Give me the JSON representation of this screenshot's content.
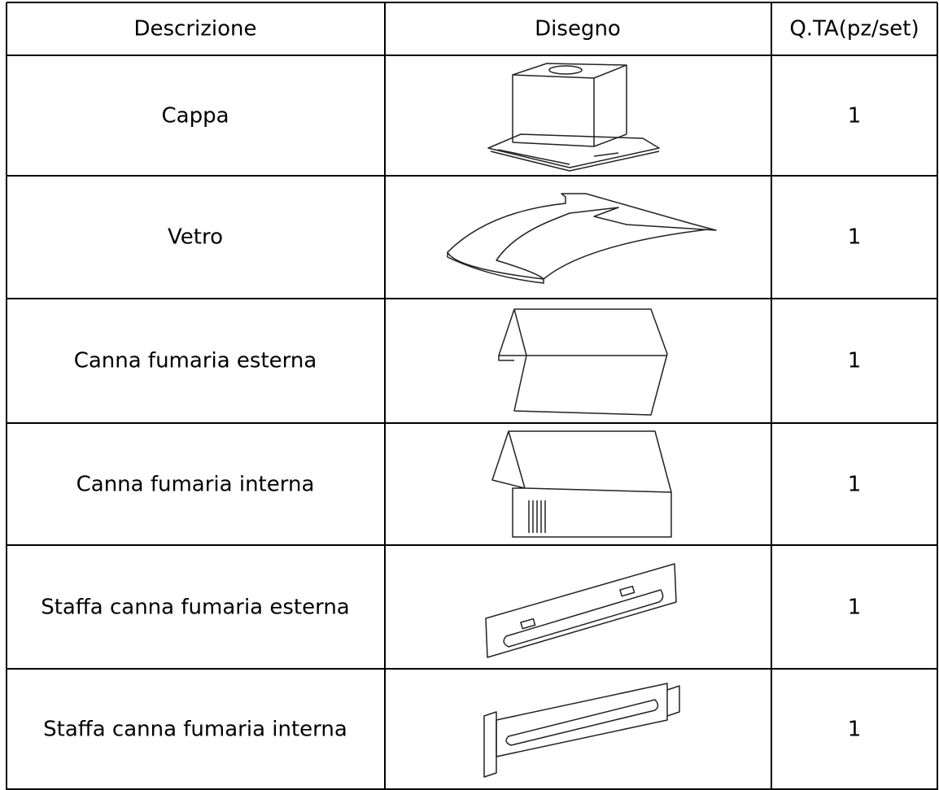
{
  "table": {
    "header": [
      "Descrizione",
      "Disegno",
      "Q.TA(pz/set)"
    ],
    "rows": [
      {
        "description": "Cappa",
        "quantity": 1
      },
      {
        "description": "Vetro",
        "quantity": 1
      },
      {
        "description": "Canna fumaria esterna",
        "quantity": 1
      },
      {
        "description": "Canna fumaria interna",
        "quantity": 1
      },
      {
        "description": "Staffa canna fumaria esterna",
        "quantity": 1
      },
      {
        "description": "Staffa canna fumaria interna",
        "quantity": 1
      }
    ]
  }
}
